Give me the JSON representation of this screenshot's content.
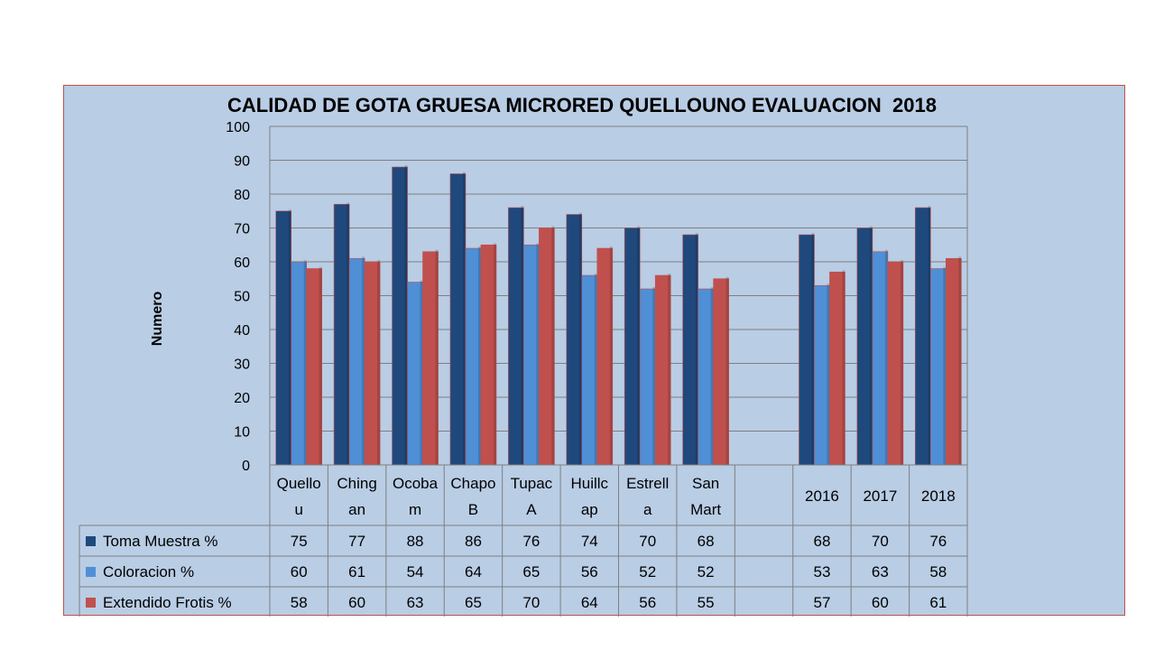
{
  "chart_data": {
    "type": "bar",
    "title": "CALIDAD DE GOTA GRUESA MICRORED QUELLOUNO EVALUACION  2018",
    "ylabel": "Numero",
    "xlabel": "",
    "ylim": [
      0,
      100
    ],
    "yticks": [
      0,
      10,
      20,
      30,
      40,
      50,
      60,
      70,
      80,
      90,
      100
    ],
    "grid": true,
    "legend": "data-table",
    "categories": [
      [
        "Quello",
        "u"
      ],
      [
        "Ching",
        "an"
      ],
      [
        "Ocoba",
        "m"
      ],
      [
        "Chapo",
        "B"
      ],
      [
        "Tupac",
        "A"
      ],
      [
        "Huillc",
        "ap"
      ],
      [
        "Estrell",
        "a"
      ],
      [
        "San",
        "Mart"
      ],
      [
        ""
      ],
      [
        "2016"
      ],
      [
        "2017"
      ],
      [
        "2018"
      ]
    ],
    "series": [
      {
        "name": "Toma Muestra %",
        "color": "#1f497d",
        "values": [
          75,
          77,
          88,
          86,
          76,
          74,
          70,
          68,
          null,
          68,
          70,
          76
        ]
      },
      {
        "name": "Coloracion %",
        "color": "#4f8fd6",
        "values": [
          60,
          61,
          54,
          64,
          65,
          56,
          52,
          52,
          null,
          53,
          63,
          58
        ]
      },
      {
        "name": "Extendido Frotis %",
        "color": "#c0504d",
        "values": [
          58,
          60,
          63,
          65,
          70,
          64,
          56,
          55,
          null,
          57,
          60,
          61
        ]
      }
    ]
  }
}
